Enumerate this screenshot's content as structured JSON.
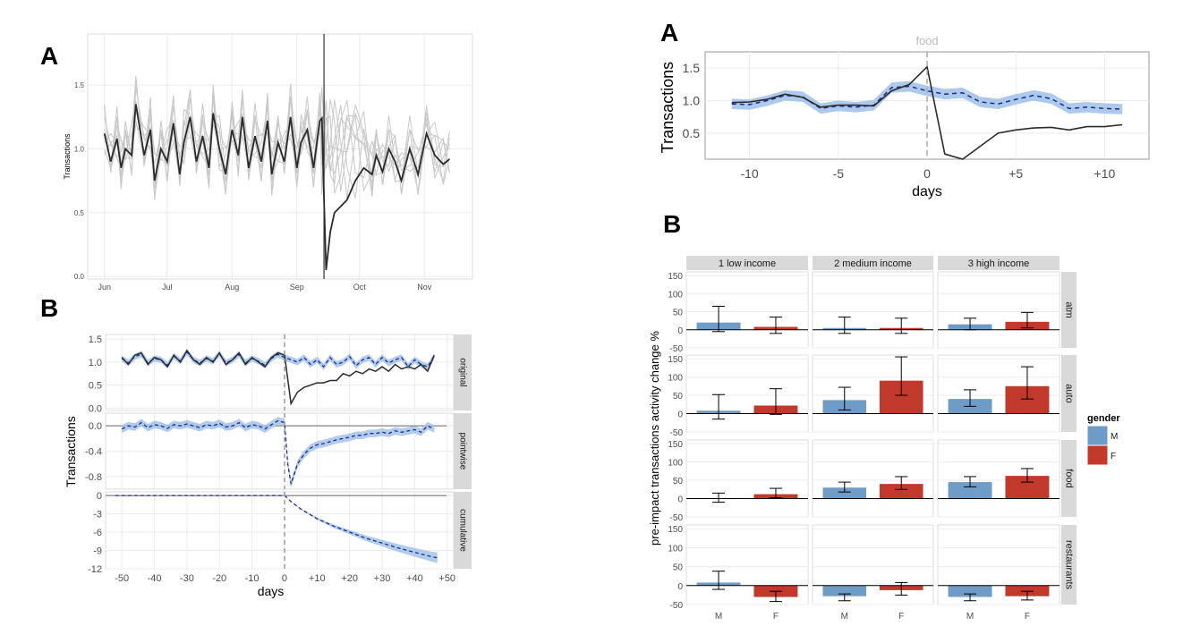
{
  "panel_labels": {
    "left_a": "A",
    "left_b": "B",
    "right_a": "A",
    "right_b": "B"
  },
  "colors": {
    "grid": "#ebebeb",
    "panel_bg": "#ffffff",
    "strip_bg": "#d9d9d9",
    "line": "#2b2b2b",
    "band": "#a4c3ea",
    "dash": "#1f2d8a",
    "male": "#6f9cc6",
    "female": "#c0392b",
    "gray_lines": "#c8c8c8"
  },
  "chart_data": [
    {
      "id": "left_a",
      "type": "line",
      "title": "",
      "xlabel": "",
      "ylabel": "Transactions",
      "ylim": [
        -0.02,
        1.9
      ],
      "yticks": [
        0.0,
        0.5,
        1.0,
        1.5
      ],
      "ytick_labels": [
        "0.0",
        "0.5",
        "1.0",
        "1.5"
      ],
      "xlim": [
        0,
        168
      ],
      "xticks": [
        0,
        30,
        61,
        92,
        122,
        153
      ],
      "xtick_labels": [
        "Jun",
        "Jul",
        "Aug",
        "Sep",
        "Oct",
        "Nov"
      ],
      "event_x": 105,
      "grid": true,
      "notes": "Black line = observed daily transactions; gray lines = reference days",
      "series": [
        {
          "style": "black",
          "x": [
            0,
            3,
            6,
            8,
            10,
            13,
            15,
            19,
            22,
            24,
            27,
            30,
            33,
            36,
            38,
            41,
            44,
            47,
            50,
            52,
            55,
            58,
            61,
            64,
            66,
            69,
            72,
            75,
            78,
            80,
            83,
            86,
            89,
            92,
            94,
            97,
            100,
            103,
            104,
            105,
            106,
            108,
            110,
            113,
            116,
            120,
            124,
            128,
            130,
            133,
            136,
            139,
            142,
            146,
            150,
            154,
            158,
            162,
            165
          ],
          "y": [
            1.12,
            0.9,
            1.08,
            0.85,
            1.0,
            0.95,
            1.35,
            0.95,
            1.15,
            0.75,
            1.0,
            0.9,
            1.2,
            0.8,
            1.05,
            1.25,
            0.9,
            1.1,
            0.85,
            1.28,
            1.0,
            0.8,
            1.15,
            0.95,
            1.25,
            0.85,
            1.1,
            0.9,
            1.22,
            0.8,
            1.05,
            0.9,
            1.25,
            0.85,
            1.05,
            1.15,
            0.85,
            1.22,
            1.24,
            0.6,
            0.05,
            0.35,
            0.5,
            0.55,
            0.6,
            0.75,
            0.85,
            0.8,
            0.95,
            0.82,
            1.0,
            0.9,
            0.75,
            1.0,
            0.8,
            1.12,
            0.95,
            0.88,
            0.92
          ]
        }
      ]
    },
    {
      "id": "left_b",
      "type": "line",
      "facet": true,
      "xlabel": "days",
      "ylabel": "Transactions",
      "xlim": [
        -55,
        52
      ],
      "xticks": [
        -50,
        -40,
        -30,
        -20,
        -10,
        0,
        10,
        20,
        30,
        40,
        50
      ],
      "xtick_labels": [
        "-50",
        "-40",
        "-30",
        "-20",
        "-10",
        "0",
        "+10",
        "+20",
        "+30",
        "+40",
        "+50"
      ],
      "event_x": 0,
      "facets": [
        {
          "name": "original",
          "ylim": [
            -0.05,
            1.6
          ],
          "yticks": [
            0.0,
            0.5,
            1.0,
            1.5
          ],
          "ytick_labels": [
            "0.0",
            "0.5",
            "1.0",
            "1.5"
          ],
          "x": [
            -50,
            -48,
            -46,
            -44,
            -42,
            -40,
            -38,
            -36,
            -34,
            -32,
            -30,
            -28,
            -26,
            -24,
            -22,
            -20,
            -18,
            -16,
            -14,
            -12,
            -10,
            -8,
            -6,
            -4,
            -2,
            0,
            2,
            4,
            6,
            8,
            10,
            12,
            14,
            16,
            18,
            20,
            22,
            24,
            26,
            28,
            30,
            32,
            34,
            36,
            38,
            40,
            42,
            44,
            46
          ],
          "observed": [
            1.1,
            0.95,
            1.15,
            1.2,
            0.95,
            1.1,
            1.05,
            0.9,
            1.15,
            1.0,
            1.25,
            1.05,
            0.95,
            1.1,
            1.0,
            1.2,
            0.95,
            1.05,
            1.2,
            0.95,
            1.1,
            1.0,
            0.9,
            1.1,
            1.2,
            1.15,
            0.1,
            0.35,
            0.45,
            0.5,
            0.55,
            0.55,
            0.6,
            0.6,
            0.75,
            0.7,
            0.8,
            0.75,
            0.85,
            0.8,
            0.9,
            0.8,
            0.95,
            0.85,
            0.9,
            0.85,
            0.95,
            0.8,
            1.15
          ],
          "predicted": [
            1.08,
            0.98,
            1.12,
            1.17,
            0.98,
            1.08,
            1.05,
            0.93,
            1.13,
            1.02,
            1.22,
            1.05,
            0.98,
            1.08,
            1.02,
            1.18,
            0.98,
            1.05,
            1.17,
            0.98,
            1.08,
            1.02,
            0.93,
            1.08,
            1.17,
            1.1,
            1.05,
            1.0,
            1.1,
            0.95,
            1.05,
            0.9,
            1.1,
            0.95,
            1.0,
            1.12,
            0.92,
            1.05,
            1.1,
            0.95,
            1.1,
            0.98,
            1.05,
            1.1,
            0.9,
            1.05,
            0.95,
            0.9,
            1.12
          ]
        },
        {
          "name": "pointwise",
          "ylim": [
            -1.0,
            0.2
          ],
          "yticks": [
            0.0,
            -0.4,
            -0.8
          ],
          "ytick_labels": [
            "0.0",
            "-0.4",
            "-0.8"
          ],
          "x": [
            -50,
            -48,
            -46,
            -44,
            -42,
            -40,
            -38,
            -36,
            -34,
            -32,
            -30,
            -28,
            -26,
            -24,
            -22,
            -20,
            -18,
            -16,
            -14,
            -12,
            -10,
            -8,
            -6,
            -4,
            -2,
            0,
            1,
            2,
            4,
            6,
            8,
            10,
            12,
            14,
            16,
            18,
            20,
            22,
            24,
            26,
            28,
            30,
            32,
            34,
            36,
            38,
            40,
            42,
            44,
            46
          ],
          "y": [
            -0.05,
            0.0,
            -0.02,
            0.05,
            -0.03,
            0.02,
            0.0,
            -0.04,
            0.02,
            0.0,
            0.03,
            0.0,
            -0.03,
            0.02,
            0.0,
            0.04,
            -0.02,
            0.0,
            0.05,
            -0.03,
            0.02,
            0.0,
            -0.05,
            0.02,
            0.08,
            0.05,
            -0.6,
            -0.92,
            -0.6,
            -0.45,
            -0.35,
            -0.3,
            -0.28,
            -0.25,
            -0.22,
            -0.2,
            -0.18,
            -0.15,
            -0.15,
            -0.12,
            -0.12,
            -0.1,
            -0.12,
            -0.08,
            -0.1,
            -0.08,
            -0.06,
            -0.1,
            0.0,
            -0.05
          ]
        },
        {
          "name": "cumulative",
          "ylim": [
            -12,
            0.6
          ],
          "yticks": [
            0,
            -3,
            -6,
            -9,
            -12
          ],
          "ytick_labels": [
            "0",
            "-3",
            "-6",
            "-9",
            "-12"
          ],
          "x": [
            -52,
            0,
            2,
            5,
            10,
            15,
            20,
            25,
            30,
            35,
            40,
            45,
            47
          ],
          "y": [
            0,
            0,
            -1.0,
            -2.2,
            -3.8,
            -5.0,
            -6.0,
            -7.0,
            -7.8,
            -8.6,
            -9.3,
            -10.0,
            -10.2
          ]
        }
      ]
    },
    {
      "id": "right_a",
      "type": "line",
      "title": "food",
      "xlabel": "days",
      "ylabel": "Transactions",
      "xlim": [
        -12.5,
        12.5
      ],
      "xticks": [
        -10,
        -5,
        0,
        5,
        10
      ],
      "xtick_labels": [
        "-10",
        "-5",
        "0",
        "+5",
        "+10"
      ],
      "ylim": [
        0.1,
        1.75
      ],
      "yticks": [
        0.5,
        1.0,
        1.5
      ],
      "ytick_labels": [
        "0.5",
        "1.0",
        "1.5"
      ],
      "event_x": 0,
      "x": [
        -11,
        -10,
        -9,
        -8,
        -7,
        -6,
        -5,
        -4,
        -3,
        -2,
        -1,
        0,
        1,
        2,
        3,
        4,
        5,
        6,
        7,
        8,
        9,
        10,
        11
      ],
      "observed": [
        0.97,
        0.98,
        1.02,
        1.1,
        1.05,
        0.9,
        0.93,
        0.93,
        0.92,
        1.15,
        1.25,
        1.52,
        0.18,
        0.1,
        0.3,
        0.5,
        0.55,
        0.58,
        0.59,
        0.55,
        0.6,
        0.6,
        0.63
      ],
      "predicted": [
        0.95,
        0.94,
        1.0,
        1.08,
        1.06,
        0.88,
        0.92,
        0.9,
        0.93,
        1.2,
        1.22,
        1.15,
        1.1,
        1.12,
        0.98,
        0.95,
        1.02,
        1.08,
        1.03,
        0.88,
        0.9,
        0.88,
        0.87
      ]
    },
    {
      "id": "right_b",
      "type": "bar",
      "facet": true,
      "ylabel": "pre-impact transactions activity change %",
      "columns": [
        "1 low income",
        "2 medium income",
        "3 high income"
      ],
      "rows": [
        "atm",
        "auto",
        "food",
        "restaurants"
      ],
      "categories": [
        "M",
        "F"
      ],
      "ylim": [
        -50,
        160
      ],
      "yticks": [
        150,
        100,
        50,
        0,
        -50
      ],
      "ytick_labels": [
        "150",
        "100",
        "50",
        "0",
        "-50"
      ],
      "legend": {
        "title": "gender",
        "position": "right",
        "entries": [
          "M",
          "F"
        ]
      },
      "values": {
        "atm": [
          [
            20,
            8
          ],
          [
            5,
            5
          ],
          [
            15,
            22
          ]
        ],
        "auto": [
          [
            8,
            22
          ],
          [
            37,
            90
          ],
          [
            40,
            75
          ]
        ],
        "food": [
          [
            -1,
            12
          ],
          [
            30,
            40
          ],
          [
            45,
            62
          ]
        ],
        "restaurants": [
          [
            8,
            -30
          ],
          [
            -28,
            -12
          ],
          [
            -30,
            -28
          ]
        ]
      },
      "errors": {
        "atm": [
          [
            [
              -5,
              65
            ],
            [
              -10,
              35
            ]
          ],
          [
            [
              -10,
              35
            ],
            [
              -10,
              32
            ]
          ],
          [
            [
              0,
              32
            ],
            [
              5,
              48
            ]
          ]
        ],
        "auto": [
          [
            [
              -15,
              52
            ],
            [
              -2,
              68
            ]
          ],
          [
            [
              10,
              72
            ],
            [
              50,
              155
            ]
          ],
          [
            [
              20,
              65
            ],
            [
              40,
              128
            ]
          ]
        ],
        "food": [
          [
            [
              -10,
              15
            ],
            [
              2,
              28
            ]
          ],
          [
            [
              18,
              45
            ],
            [
              25,
              60
            ]
          ],
          [
            [
              32,
              60
            ],
            [
              45,
              82
            ]
          ]
        ],
        "restaurants": [
          [
            [
              -10,
              38
            ],
            [
              -42,
              -15
            ]
          ],
          [
            [
              -40,
              -22
            ],
            [
              -25,
              8
            ]
          ],
          [
            [
              -40,
              -22
            ],
            [
              -38,
              -15
            ]
          ]
        ]
      }
    }
  ]
}
